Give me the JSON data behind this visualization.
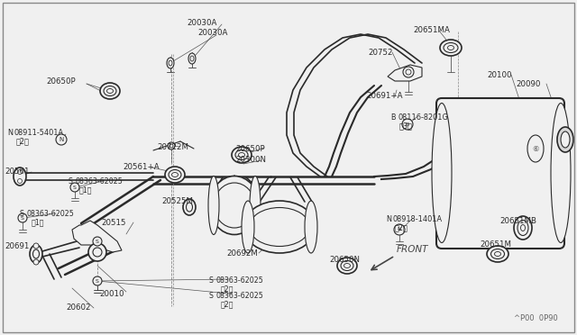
{
  "bg_color": "#f0f0f0",
  "line_color": "#2a2a2a",
  "label_color": "#2a2a2a",
  "border_color": "#aaaaaa",
  "labels": {
    "20030A_top": [
      207,
      22,
      "20030A"
    ],
    "20030A_bot": [
      218,
      34,
      "20030A"
    ],
    "20650P_left": [
      52,
      87,
      "20650P"
    ],
    "N_08911": [
      8,
      143,
      "N§08911-5401A"
    ],
    "N_08911_sub": [
      18,
      152,
      "〈2〉"
    ],
    "20722M": [
      175,
      160,
      "20722M"
    ],
    "20650P_mid": [
      263,
      162,
      "20650P"
    ],
    "20300N": [
      265,
      174,
      "20300N"
    ],
    "20561": [
      5,
      187,
      "20561"
    ],
    "20561A": [
      138,
      182,
      "20561+A"
    ],
    "S_08363_1": [
      65,
      198,
      "S§08363-62025"
    ],
    "S_08363_1sub": [
      75,
      207,
      "（1）"
    ],
    "20525M": [
      180,
      220,
      "20525M"
    ],
    "S_08363_2": [
      12,
      234,
      "S§08363-62025"
    ],
    "S_08363_2sub": [
      22,
      243,
      "（1）"
    ],
    "20515": [
      113,
      244,
      "20515"
    ],
    "20692M": [
      253,
      278,
      "20692M"
    ],
    "20691": [
      5,
      270,
      "20691"
    ],
    "S_08363_3": [
      220,
      307,
      "S§08363-62025"
    ],
    "S_08363_3sub": [
      230,
      316,
      "（2）"
    ],
    "S_08363_4": [
      220,
      325,
      "S§08363-62025"
    ],
    "S_08363_4sub": [
      230,
      334,
      "（2）"
    ],
    "20010": [
      111,
      322,
      "20010"
    ],
    "20602": [
      74,
      338,
      "20602"
    ],
    "20651MA": [
      459,
      30,
      "20651MA"
    ],
    "20752": [
      409,
      55,
      "20752"
    ],
    "20691A": [
      407,
      103,
      "20691+A"
    ],
    "B_08116": [
      432,
      127,
      "B§08116-8201G"
    ],
    "B_08116sub": [
      442,
      136,
      "（3）"
    ],
    "N_08918": [
      427,
      240,
      "N§08918-1401A"
    ],
    "N_08918sub": [
      437,
      249,
      "（2）"
    ],
    "20650N": [
      366,
      285,
      "20650N"
    ],
    "20100": [
      541,
      80,
      "20100"
    ],
    "20090": [
      573,
      90,
      "20090"
    ],
    "20651MB": [
      556,
      242,
      "20651MB"
    ],
    "20651M": [
      533,
      268,
      "20651M"
    ],
    "FRONT": [
      430,
      275,
      "FRONT"
    ],
    "diagram_num": [
      571,
      350,
      "^P00  0P90"
    ]
  }
}
